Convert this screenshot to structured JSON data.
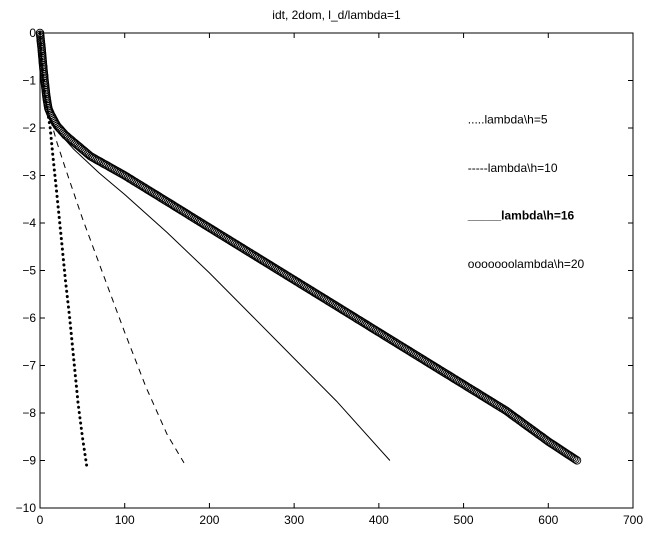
{
  "chart_data": {
    "type": "line",
    "title": "idt, 2dom, l_d/lambda=1",
    "xlabel": "",
    "ylabel": "",
    "xlim": [
      0,
      700
    ],
    "ylim": [
      -10,
      0
    ],
    "xticks": [
      0,
      100,
      200,
      300,
      400,
      500,
      600,
      700
    ],
    "yticks": [
      0,
      -1,
      -2,
      -3,
      -4,
      -5,
      -6,
      -7,
      -8,
      -9,
      -10
    ],
    "xtick_labels": [
      "0",
      "100",
      "200",
      "300",
      "400",
      "500",
      "600",
      "700"
    ],
    "ytick_labels": [
      "0",
      "−1",
      "−2",
      "−3",
      "−4",
      "−5",
      "−6",
      "−7",
      "−8",
      "−9",
      "−10"
    ],
    "grid": false,
    "legend_position": "right",
    "annotations": [
      {
        "text": ".....lambda\\h=5",
        "x": 505,
        "y": -1.9,
        "bold": false
      },
      {
        "text": "-----lambda\\h=10",
        "x": 505,
        "y": -2.93,
        "bold": false
      },
      {
        "text": "_____lambda\\h=16",
        "x": 505,
        "y": -3.93,
        "bold": true
      },
      {
        "text": "ooooooolambda\\h=20",
        "x": 505,
        "y": -4.95,
        "bold": false
      }
    ],
    "series": [
      {
        "name": "lambda\\h=5",
        "style": "dotted",
        "color": "#000000",
        "x": [
          0,
          2,
          5,
          8,
          12,
          15,
          20,
          25,
          30,
          35,
          40,
          45,
          50,
          55
        ],
        "y": [
          0,
          -0.6,
          -1.2,
          -1.55,
          -2.0,
          -2.55,
          -3.4,
          -4.3,
          -5.2,
          -6.0,
          -6.9,
          -7.8,
          -8.5,
          -9.1
        ]
      },
      {
        "name": "lambda\\h=10",
        "style": "dashed",
        "color": "#000000",
        "x": [
          0,
          2,
          5,
          8,
          12,
          20,
          30,
          50,
          75,
          100,
          125,
          150,
          170
        ],
        "y": [
          0,
          -0.6,
          -1.2,
          -1.55,
          -1.8,
          -2.3,
          -2.85,
          -3.9,
          -5.1,
          -6.3,
          -7.45,
          -8.45,
          -9.05
        ]
      },
      {
        "name": "lambda\\h=16",
        "style": "solid",
        "color": "#000000",
        "x": [
          0,
          2,
          5,
          8,
          12,
          20,
          40,
          70,
          100,
          150,
          200,
          250,
          300,
          350,
          413
        ],
        "y": [
          0,
          -0.6,
          -1.2,
          -1.55,
          -1.8,
          -2.05,
          -2.45,
          -2.95,
          -3.4,
          -4.2,
          -5.05,
          -5.95,
          -6.85,
          -7.75,
          -9.0
        ]
      },
      {
        "name": "lambda\\h=20",
        "style": "circle-markers",
        "color": "#000000",
        "x": [
          0,
          2,
          4,
          6,
          8,
          10,
          13,
          16,
          20,
          30,
          40,
          50,
          60,
          80,
          100,
          150,
          200,
          250,
          300,
          350,
          400,
          450,
          500,
          550,
          600,
          634
        ],
        "y": [
          0,
          -0.35,
          -0.75,
          -1.1,
          -1.4,
          -1.6,
          -1.72,
          -1.82,
          -1.95,
          -2.15,
          -2.3,
          -2.45,
          -2.6,
          -2.8,
          -3.0,
          -3.55,
          -4.1,
          -4.65,
          -5.2,
          -5.75,
          -6.3,
          -6.85,
          -7.4,
          -7.95,
          -8.6,
          -9.0
        ]
      }
    ]
  }
}
